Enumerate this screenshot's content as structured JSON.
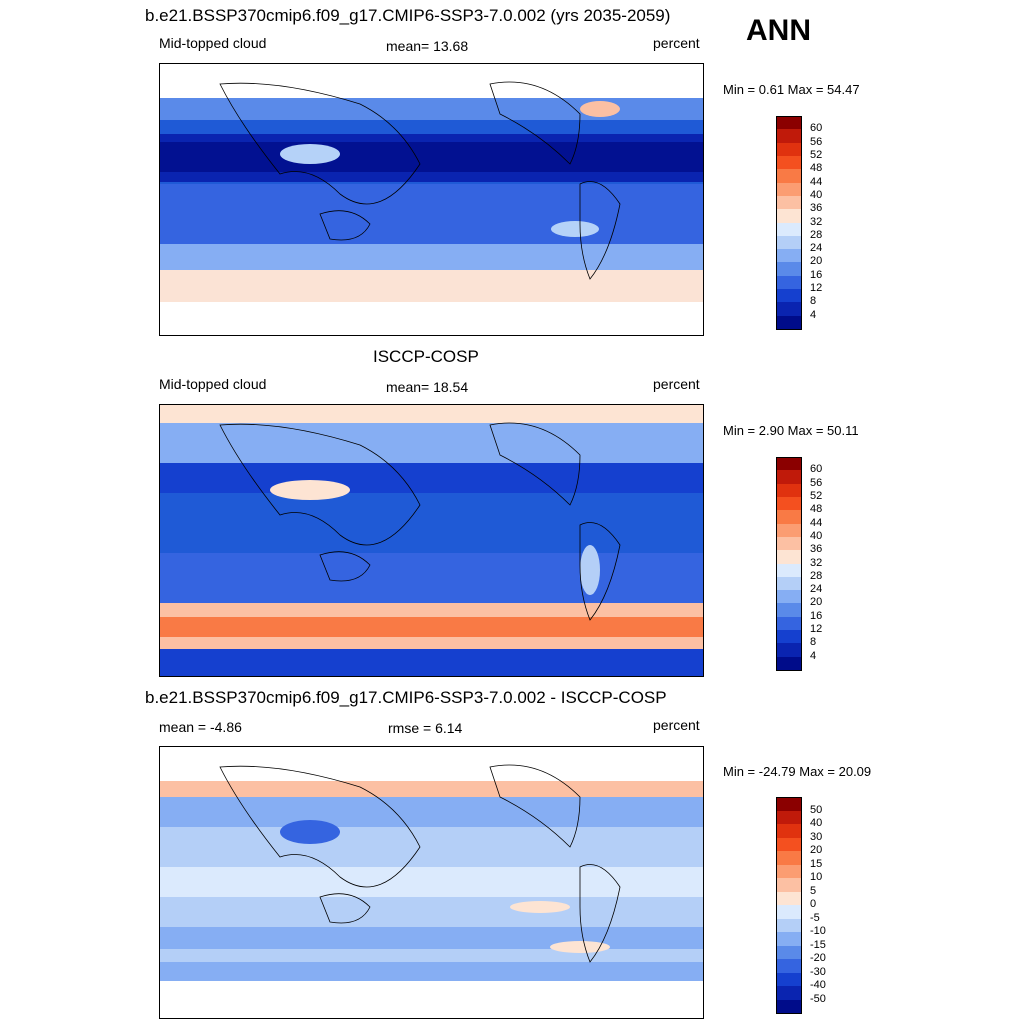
{
  "season": "ANN",
  "units_label": "percent",
  "panels": [
    {
      "title": "b.e21.BSSP370cmip6.f09_g17.CMIP6-SSP3-7.0.002 (yrs 2035-2059)",
      "variable": "Mid-topped cloud",
      "stat_label": "mean=  13.68",
      "stat2_label": "",
      "minmax": "Min =   0.61 Max =  54.47",
      "colorbar_ticks": [
        "60",
        "56",
        "52",
        "48",
        "44",
        "40",
        "36",
        "32",
        "28",
        "24",
        "20",
        "16",
        "12",
        "8",
        "4"
      ],
      "colors": [
        "#1f5ad6",
        "#3f78e8",
        "#0f2ea8",
        "#0a1f8c",
        "#b5d2f8",
        "#fbe3d5",
        "#f19d7c"
      ],
      "note": ""
    },
    {
      "title": "ISCCP-COSP",
      "variable": "Mid-topped cloud",
      "stat_label": "mean=  18.54",
      "stat2_label": "",
      "minmax": "Min =   2.90 Max =  50.11",
      "colorbar_ticks": [
        "60",
        "56",
        "52",
        "48",
        "44",
        "40",
        "36",
        "32",
        "28",
        "24",
        "20",
        "16",
        "12",
        "8",
        "4"
      ]
    },
    {
      "title": "b.e21.BSSP370cmip6.f09_g17.CMIP6-SSP3-7.0.002 - ISCCP-COSP",
      "variable": "mean =  -4.86",
      "stat_label": "rmse =   6.14",
      "stat2_label": "",
      "minmax": "Min = -24.79 Max =  20.09",
      "colorbar_ticks": [
        "50",
        "40",
        "30",
        "20",
        "15",
        "10",
        "5",
        "0",
        "-5",
        "-10",
        "-15",
        "-20",
        "-30",
        "-40",
        "-50"
      ]
    }
  ],
  "colorbar_colors": [
    "#8b0000",
    "#c01a0a",
    "#e0320f",
    "#f4501f",
    "#f97a45",
    "#fb9d72",
    "#fcc0a3",
    "#fde4d3",
    "#dbeafd",
    "#b4cff7",
    "#86aef3",
    "#5a8ae9",
    "#3564e0",
    "#1540cf",
    "#0a24b0",
    "#000c8a"
  ]
}
